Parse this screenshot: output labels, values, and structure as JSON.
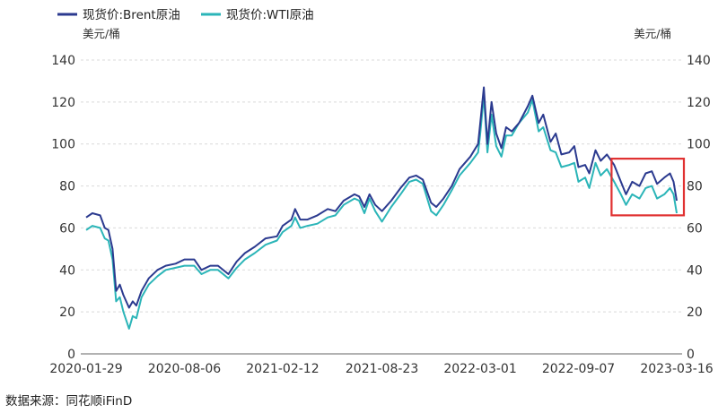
{
  "chart_data": {
    "type": "line",
    "title": "",
    "legend_position": "top-left",
    "grid": true,
    "unit_left": "美元/桶",
    "unit_right": "美元/桶",
    "ylim": [
      0,
      140
    ],
    "yticks": [
      0,
      20,
      40,
      60,
      80,
      100,
      120,
      140
    ],
    "yticks_right": [
      0,
      20,
      40,
      60,
      80,
      100,
      120,
      140
    ],
    "xlim": [
      "2020-01-29",
      "2023-03-16"
    ],
    "xticks": [
      "2020-01-29",
      "2020-08-06",
      "2021-02-12",
      "2021-08-23",
      "2022-03-01",
      "2022-09-07",
      "2023-03-16"
    ],
    "source": "数据来源：同花顺iFinD",
    "highlight_box": {
      "x_start": "2022-11-10",
      "x_end": "2023-03-16",
      "y_low": 66,
      "y_high": 93,
      "color": "#e03131"
    },
    "series": [
      {
        "name": "现货价:Brent原油",
        "color": "#2b3a8f",
        "points": [
          [
            "2020-01-29",
            65
          ],
          [
            "2020-02-10",
            67
          ],
          [
            "2020-02-25",
            66
          ],
          [
            "2020-03-05",
            60
          ],
          [
            "2020-03-12",
            59
          ],
          [
            "2020-03-20",
            50
          ],
          [
            "2020-03-27",
            30
          ],
          [
            "2020-04-03",
            33
          ],
          [
            "2020-04-10",
            28
          ],
          [
            "2020-04-21",
            22
          ],
          [
            "2020-04-28",
            25
          ],
          [
            "2020-05-05",
            23
          ],
          [
            "2020-05-15",
            30
          ],
          [
            "2020-05-29",
            36
          ],
          [
            "2020-06-15",
            40
          ],
          [
            "2020-07-01",
            42
          ],
          [
            "2020-07-20",
            43
          ],
          [
            "2020-08-06",
            45
          ],
          [
            "2020-08-25",
            45
          ],
          [
            "2020-09-08",
            40
          ],
          [
            "2020-09-25",
            42
          ],
          [
            "2020-10-10",
            42
          ],
          [
            "2020-10-30",
            38
          ],
          [
            "2020-11-15",
            44
          ],
          [
            "2020-12-01",
            48
          ],
          [
            "2020-12-20",
            51
          ],
          [
            "2021-01-10",
            55
          ],
          [
            "2021-02-01",
            56
          ],
          [
            "2021-02-12",
            61
          ],
          [
            "2021-03-01",
            64
          ],
          [
            "2021-03-08",
            69
          ],
          [
            "2021-03-18",
            64
          ],
          [
            "2021-04-01",
            64
          ],
          [
            "2021-04-20",
            66
          ],
          [
            "2021-05-10",
            69
          ],
          [
            "2021-05-25",
            68
          ],
          [
            "2021-06-10",
            73
          ],
          [
            "2021-07-01",
            76
          ],
          [
            "2021-07-10",
            75
          ],
          [
            "2021-07-20",
            70
          ],
          [
            "2021-07-30",
            76
          ],
          [
            "2021-08-10",
            71
          ],
          [
            "2021-08-23",
            68
          ],
          [
            "2021-09-10",
            73
          ],
          [
            "2021-09-28",
            79
          ],
          [
            "2021-10-15",
            84
          ],
          [
            "2021-10-28",
            85
          ],
          [
            "2021-11-10",
            83
          ],
          [
            "2021-11-26",
            72
          ],
          [
            "2021-12-06",
            70
          ],
          [
            "2021-12-20",
            74
          ],
          [
            "2022-01-05",
            80
          ],
          [
            "2022-01-20",
            88
          ],
          [
            "2022-02-10",
            94
          ],
          [
            "2022-02-25",
            100
          ],
          [
            "2022-03-01",
            110
          ],
          [
            "2022-03-08",
            127
          ],
          [
            "2022-03-15",
            100
          ],
          [
            "2022-03-23",
            120
          ],
          [
            "2022-04-01",
            105
          ],
          [
            "2022-04-11",
            98
          ],
          [
            "2022-04-20",
            108
          ],
          [
            "2022-05-01",
            106
          ],
          [
            "2022-05-15",
            110
          ],
          [
            "2022-06-01",
            118
          ],
          [
            "2022-06-10",
            123
          ],
          [
            "2022-06-22",
            110
          ],
          [
            "2022-07-01",
            114
          ],
          [
            "2022-07-15",
            101
          ],
          [
            "2022-07-25",
            105
          ],
          [
            "2022-08-05",
            95
          ],
          [
            "2022-08-20",
            96
          ],
          [
            "2022-08-30",
            99
          ],
          [
            "2022-09-07",
            89
          ],
          [
            "2022-09-20",
            90
          ],
          [
            "2022-09-28",
            86
          ],
          [
            "2022-10-10",
            97
          ],
          [
            "2022-10-20",
            92
          ],
          [
            "2022-11-01",
            95
          ],
          [
            "2022-11-15",
            90
          ],
          [
            "2022-11-28",
            82
          ],
          [
            "2022-12-08",
            76
          ],
          [
            "2022-12-20",
            82
          ],
          [
            "2023-01-03",
            80
          ],
          [
            "2023-01-15",
            86
          ],
          [
            "2023-01-27",
            87
          ],
          [
            "2023-02-06",
            81
          ],
          [
            "2023-02-20",
            84
          ],
          [
            "2023-03-03",
            86
          ],
          [
            "2023-03-10",
            82
          ],
          [
            "2023-03-16",
            73
          ]
        ]
      },
      {
        "name": "现货价:WTI原油",
        "color": "#2bb5b8",
        "points": [
          [
            "2020-01-29",
            59
          ],
          [
            "2020-02-10",
            61
          ],
          [
            "2020-02-25",
            60
          ],
          [
            "2020-03-05",
            55
          ],
          [
            "2020-03-12",
            54
          ],
          [
            "2020-03-20",
            45
          ],
          [
            "2020-03-27",
            25
          ],
          [
            "2020-04-03",
            27
          ],
          [
            "2020-04-10",
            20
          ],
          [
            "2020-04-21",
            12
          ],
          [
            "2020-04-28",
            18
          ],
          [
            "2020-05-05",
            17
          ],
          [
            "2020-05-15",
            27
          ],
          [
            "2020-05-29",
            33
          ],
          [
            "2020-06-15",
            37
          ],
          [
            "2020-07-01",
            40
          ],
          [
            "2020-07-20",
            41
          ],
          [
            "2020-08-06",
            42
          ],
          [
            "2020-08-25",
            42
          ],
          [
            "2020-09-08",
            38
          ],
          [
            "2020-09-25",
            40
          ],
          [
            "2020-10-10",
            40
          ],
          [
            "2020-10-30",
            36
          ],
          [
            "2020-11-15",
            41
          ],
          [
            "2020-12-01",
            45
          ],
          [
            "2020-12-20",
            48
          ],
          [
            "2021-01-10",
            52
          ],
          [
            "2021-02-01",
            54
          ],
          [
            "2021-02-12",
            58
          ],
          [
            "2021-03-01",
            61
          ],
          [
            "2021-03-08",
            65
          ],
          [
            "2021-03-18",
            60
          ],
          [
            "2021-04-01",
            61
          ],
          [
            "2021-04-20",
            62
          ],
          [
            "2021-05-10",
            65
          ],
          [
            "2021-05-25",
            66
          ],
          [
            "2021-06-10",
            71
          ],
          [
            "2021-07-01",
            74
          ],
          [
            "2021-07-10",
            73
          ],
          [
            "2021-07-20",
            67
          ],
          [
            "2021-07-30",
            74
          ],
          [
            "2021-08-10",
            68
          ],
          [
            "2021-08-23",
            63
          ],
          [
            "2021-09-10",
            70
          ],
          [
            "2021-09-28",
            76
          ],
          [
            "2021-10-15",
            82
          ],
          [
            "2021-10-28",
            83
          ],
          [
            "2021-11-10",
            81
          ],
          [
            "2021-11-26",
            68
          ],
          [
            "2021-12-06",
            66
          ],
          [
            "2021-12-20",
            71
          ],
          [
            "2022-01-05",
            78
          ],
          [
            "2022-01-20",
            85
          ],
          [
            "2022-02-10",
            91
          ],
          [
            "2022-02-25",
            96
          ],
          [
            "2022-03-01",
            105
          ],
          [
            "2022-03-08",
            123
          ],
          [
            "2022-03-15",
            96
          ],
          [
            "2022-03-23",
            114
          ],
          [
            "2022-04-01",
            99
          ],
          [
            "2022-04-11",
            94
          ],
          [
            "2022-04-20",
            104
          ],
          [
            "2022-05-01",
            104
          ],
          [
            "2022-05-15",
            110
          ],
          [
            "2022-06-01",
            115
          ],
          [
            "2022-06-10",
            121
          ],
          [
            "2022-06-22",
            106
          ],
          [
            "2022-07-01",
            108
          ],
          [
            "2022-07-15",
            97
          ],
          [
            "2022-07-25",
            96
          ],
          [
            "2022-08-05",
            89
          ],
          [
            "2022-08-20",
            90
          ],
          [
            "2022-08-30",
            91
          ],
          [
            "2022-09-07",
            82
          ],
          [
            "2022-09-20",
            84
          ],
          [
            "2022-09-28",
            79
          ],
          [
            "2022-10-10",
            91
          ],
          [
            "2022-10-20",
            85
          ],
          [
            "2022-11-01",
            88
          ],
          [
            "2022-11-15",
            82
          ],
          [
            "2022-11-28",
            76
          ],
          [
            "2022-12-08",
            71
          ],
          [
            "2022-12-20",
            76
          ],
          [
            "2023-01-03",
            74
          ],
          [
            "2023-01-15",
            79
          ],
          [
            "2023-01-27",
            80
          ],
          [
            "2023-02-06",
            74
          ],
          [
            "2023-02-20",
            76
          ],
          [
            "2023-03-03",
            79
          ],
          [
            "2023-03-10",
            76
          ],
          [
            "2023-03-16",
            67
          ]
        ]
      }
    ]
  }
}
